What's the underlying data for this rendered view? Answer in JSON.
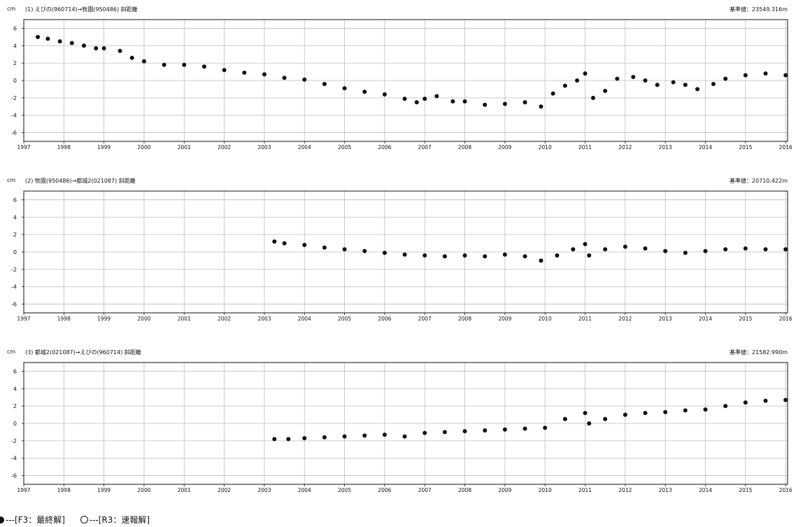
{
  "chart_data": [
    {
      "type": "scatter",
      "unit": "cm",
      "title": "(1) えびの(960714)→牧園(950486) 斜距離",
      "baseline": "基準値：23549.316m",
      "ylim": [
        -7,
        7
      ],
      "yticks": [
        "6",
        "4",
        "2",
        "0",
        "-2",
        "-4",
        "-6"
      ],
      "xlim": [
        1997,
        2016.05
      ],
      "xticks": [
        "1997",
        "1998",
        "1999",
        "2000",
        "2001",
        "2002",
        "2003",
        "2004",
        "2005",
        "2006",
        "2007",
        "2008",
        "2009",
        "2010",
        "2011",
        "2012",
        "2013",
        "2014",
        "2015",
        "2016"
      ],
      "grid": true,
      "series": [
        {
          "x": [
            1997.35,
            1997.6,
            1997.9,
            1998.2,
            1998.5,
            1998.8,
            1999.0,
            1999.4,
            1999.7,
            2000.0,
            2000.5,
            2001.0,
            2001.5,
            2002.0,
            2002.5,
            2003.0,
            2003.5,
            2004.0,
            2004.5,
            2005.0,
            2005.5,
            2006.0,
            2006.5,
            2006.8,
            2007.0,
            2007.3,
            2007.7,
            2008.0,
            2008.5,
            2009.0,
            2009.5,
            2009.9,
            2010.2,
            2010.5,
            2010.8,
            2011.0,
            2011.2,
            2011.5,
            2011.8,
            2012.2,
            2012.5,
            2012.8,
            2013.2,
            2013.5,
            2013.8,
            2014.2,
            2014.5,
            2015.0,
            2015.5,
            2016.0
          ],
          "y": [
            5.0,
            4.8,
            4.5,
            4.3,
            4.0,
            3.7,
            3.7,
            3.4,
            2.6,
            2.2,
            1.8,
            1.8,
            1.6,
            1.2,
            0.9,
            0.7,
            0.3,
            0.1,
            -0.4,
            -0.9,
            -1.3,
            -1.6,
            -2.1,
            -2.5,
            -2.1,
            -1.8,
            -2.4,
            -2.4,
            -2.8,
            -2.7,
            -2.5,
            -3.0,
            -1.5,
            -0.6,
            0.0,
            0.8,
            -2.0,
            -1.2,
            0.2,
            0.4,
            0.0,
            -0.5,
            -0.2,
            -0.5,
            -1.0,
            -0.4,
            0.2,
            0.6,
            0.8,
            0.6
          ]
        }
      ]
    },
    {
      "type": "scatter",
      "unit": "cm",
      "title": "(2) 牧園(950486)→都城2(021087) 斜距離",
      "baseline": "基準値：20710.422m",
      "ylim": [
        -7,
        7
      ],
      "yticks": [
        "6",
        "4",
        "2",
        "0",
        "-2",
        "-4",
        "-6"
      ],
      "xlim": [
        1997,
        2016.05
      ],
      "xticks": [
        "1997",
        "1998",
        "1999",
        "2000",
        "2001",
        "2002",
        "2003",
        "2004",
        "2005",
        "2006",
        "2007",
        "2008",
        "2009",
        "2010",
        "2011",
        "2012",
        "2013",
        "2014",
        "2015",
        "2016"
      ],
      "grid": true,
      "series": [
        {
          "x": [
            2003.25,
            2003.5,
            2004.0,
            2004.5,
            2005.0,
            2005.5,
            2006.0,
            2006.5,
            2007.0,
            2007.5,
            2008.0,
            2008.5,
            2009.0,
            2009.5,
            2009.9,
            2010.3,
            2010.7,
            2011.0,
            2011.1,
            2011.5,
            2012.0,
            2012.5,
            2013.0,
            2013.5,
            2014.0,
            2014.5,
            2015.0,
            2015.5,
            2016.0
          ],
          "y": [
            1.2,
            1.0,
            0.8,
            0.5,
            0.3,
            0.1,
            -0.1,
            -0.3,
            -0.4,
            -0.5,
            -0.4,
            -0.5,
            -0.3,
            -0.5,
            -1.0,
            -0.4,
            0.3,
            0.9,
            -0.4,
            0.3,
            0.6,
            0.4,
            0.1,
            -0.1,
            0.1,
            0.3,
            0.4,
            0.3,
            0.3
          ]
        }
      ]
    },
    {
      "type": "scatter",
      "unit": "cm",
      "title": "(3) 都城2(021087)→えびの(960714) 斜距離",
      "baseline": "基準値：21582.990m",
      "ylim": [
        -7,
        7
      ],
      "yticks": [
        "6",
        "4",
        "2",
        "0",
        "-2",
        "-4",
        "-6"
      ],
      "xlim": [
        1997,
        2016.05
      ],
      "xticks": [
        "1997",
        "1998",
        "1999",
        "2000",
        "2001",
        "2002",
        "2003",
        "2004",
        "2005",
        "2006",
        "2007",
        "2008",
        "2009",
        "2010",
        "2011",
        "2012",
        "2013",
        "2014",
        "2015",
        "2016"
      ],
      "grid": true,
      "series": [
        {
          "x": [
            2003.25,
            2003.6,
            2004.0,
            2004.5,
            2005.0,
            2005.5,
            2006.0,
            2006.5,
            2007.0,
            2007.5,
            2008.0,
            2008.5,
            2009.0,
            2009.5,
            2010.0,
            2010.5,
            2011.0,
            2011.1,
            2011.5,
            2012.0,
            2012.5,
            2013.0,
            2013.5,
            2014.0,
            2014.5,
            2015.0,
            2015.5,
            2016.0
          ],
          "y": [
            -1.8,
            -1.8,
            -1.7,
            -1.6,
            -1.5,
            -1.4,
            -1.3,
            -1.5,
            -1.1,
            -1.0,
            -0.9,
            -0.8,
            -0.7,
            -0.6,
            -0.5,
            0.5,
            1.2,
            0.0,
            0.5,
            1.0,
            1.2,
            1.3,
            1.5,
            1.6,
            2.0,
            2.4,
            2.6,
            2.7
          ]
        }
      ]
    }
  ],
  "legend": {
    "final_label": "---[F3：最終解]",
    "rapid_label": "---[R3：速報解]"
  },
  "colors": {
    "points": "#111111",
    "grid": "#bdbdbd",
    "frame": "#111111"
  }
}
